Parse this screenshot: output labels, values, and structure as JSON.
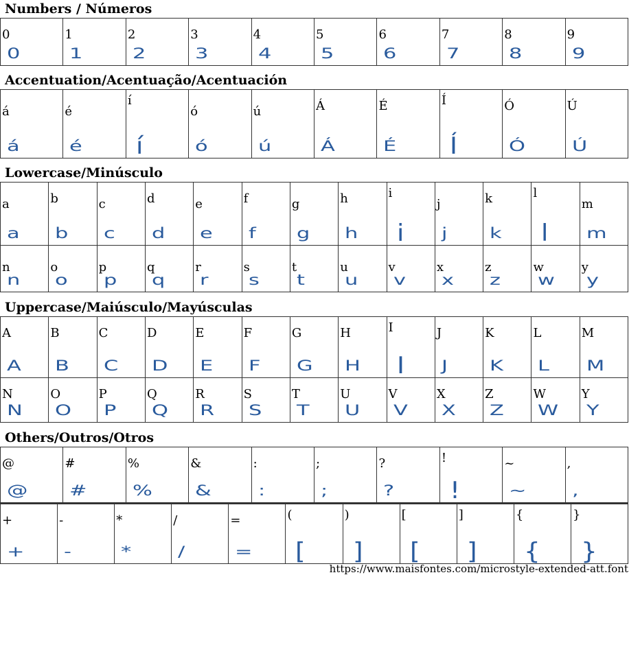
{
  "sections": [
    {
      "title": "Numbers / Números",
      "rows": [
        [
          "0",
          "1",
          "2",
          "3",
          "4",
          "5",
          "6",
          "7",
          "8",
          "9"
        ]
      ]
    },
    {
      "title": "Accentuation/Acentuação/Acentuación",
      "rows": [
        [
          "á",
          "é",
          "í",
          "ó",
          "ú",
          "Á",
          "É",
          "Í",
          "Ó",
          "Ú"
        ]
      ]
    },
    {
      "title": "Lowercase/Minúsculo",
      "rows": [
        [
          "a",
          "b",
          "c",
          "d",
          "e",
          "f",
          "g",
          "h",
          "i",
          "j",
          "k",
          "l",
          "m"
        ],
        [
          "n",
          "o",
          "p",
          "q",
          "r",
          "s",
          "t",
          "u",
          "v",
          "x",
          "z",
          "w",
          "y"
        ]
      ]
    },
    {
      "title": "Uppercase/Maiúsculo/Mayúsculas",
      "rows": [
        [
          "A",
          "B",
          "C",
          "D",
          "E",
          "F",
          "G",
          "H",
          "I",
          "J",
          "K",
          "L",
          "M"
        ],
        [
          "N",
          "O",
          "P",
          "Q",
          "R",
          "S",
          "T",
          "U",
          "V",
          "X",
          "Z",
          "W",
          "Y"
        ]
      ]
    },
    {
      "title": "Others/Outros/Otros",
      "rows": [
        [
          "@",
          "#",
          "%",
          "&",
          ":",
          ";",
          "?",
          "!",
          "~",
          ","
        ],
        [
          "+",
          "-",
          "*",
          "/",
          "=",
          "(",
          ")",
          "[",
          "]",
          "{",
          "}"
        ]
      ]
    }
  ],
  "glyph_color": "#2a5b9d",
  "footer_url": "https://www.maisfontes.com/microstyle-extended-att.font"
}
